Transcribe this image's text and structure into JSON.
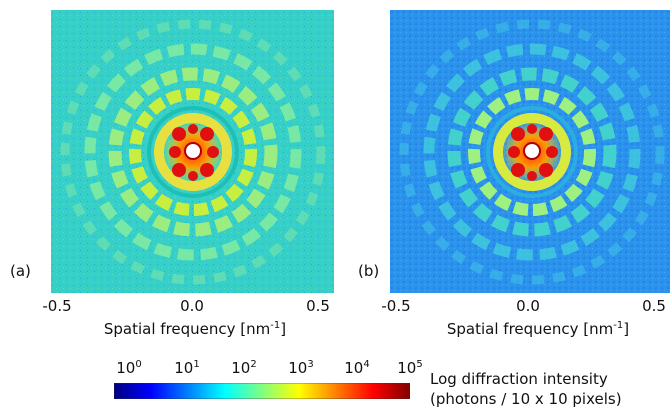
{
  "panels": [
    {
      "label": "(a)",
      "background": "#36d0c8"
    },
    {
      "label": "(b)",
      "background": "#2b92ee"
    }
  ],
  "x_axis": {
    "ticks": [
      "-0.5",
      "0.0",
      "0.5"
    ],
    "label_main": "Spatial frequency [nm",
    "label_sup": "-1",
    "label_end": "]"
  },
  "colorbar": {
    "ticks": [
      {
        "base": "10",
        "exp": "0"
      },
      {
        "base": "10",
        "exp": "1"
      },
      {
        "base": "10",
        "exp": "2"
      },
      {
        "base": "10",
        "exp": "3"
      },
      {
        "base": "10",
        "exp": "4"
      },
      {
        "base": "10",
        "exp": "5"
      }
    ],
    "title_line1": "Log diffraction intensity",
    "title_line2": "(photons / 10 x 10 pixels)",
    "colors": [
      "#000080",
      "#0000ff",
      "#0080ff",
      "#00ffff",
      "#80ff80",
      "#ffff00",
      "#ff8000",
      "#ff0000",
      "#800000"
    ]
  }
}
